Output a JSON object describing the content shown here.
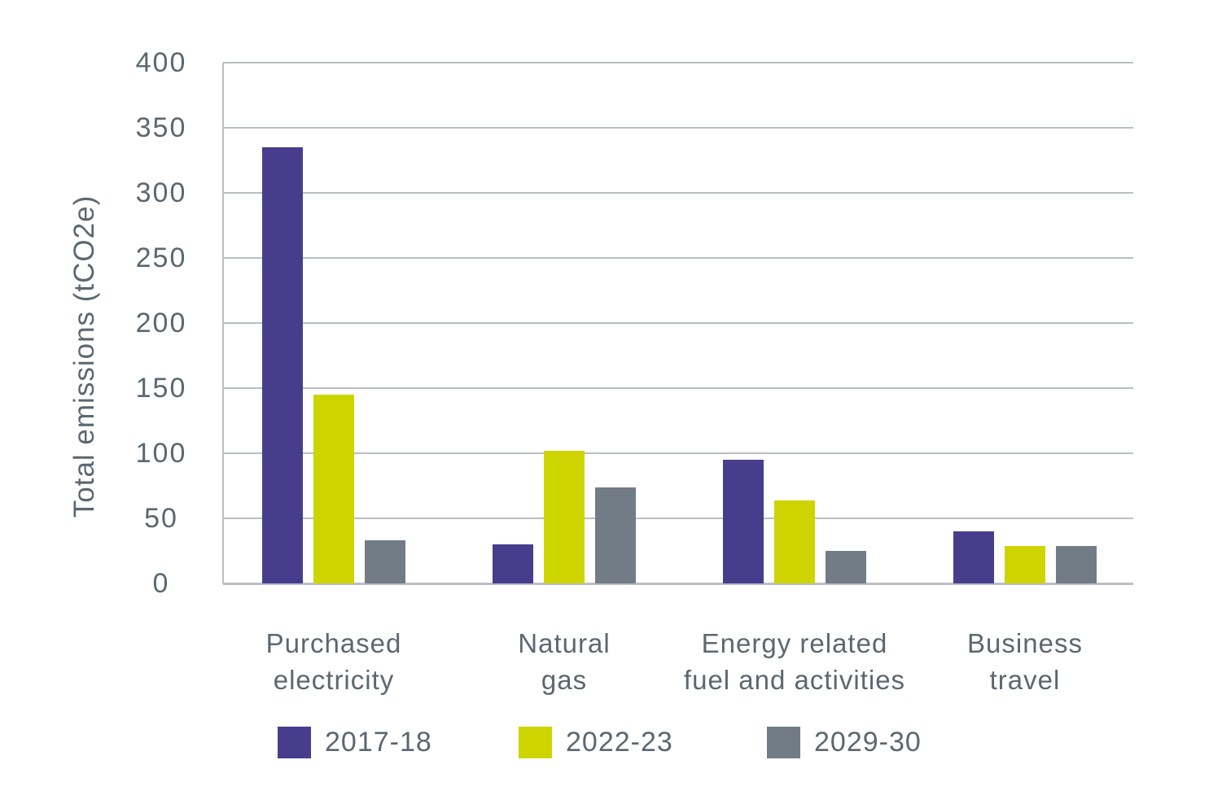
{
  "colors": {
    "series_2017_18": "#483d8d",
    "series_2022_23": "#cdd400",
    "series_2029_30": "#727c87",
    "grid": "#b9bfc4",
    "axis_text": "#5b6771",
    "background": "#ffffff"
  },
  "chart_data": {
    "type": "bar",
    "title": "",
    "xlabel": "",
    "ylabel": "Total emissions (tCO2e)",
    "ylim": [
      0,
      400
    ],
    "ytick_step": 50,
    "yticks": [
      0,
      50,
      100,
      150,
      200,
      250,
      300,
      350,
      400
    ],
    "grid": true,
    "legend_position": "bottom",
    "categories": [
      "Purchased electricity",
      "Natural gas",
      "Energy related fuel and activities",
      "Business travel"
    ],
    "category_lines": [
      [
        "Purchased",
        "electricity"
      ],
      [
        "Natural",
        "gas"
      ],
      [
        "Energy related",
        "fuel and activities"
      ],
      [
        "Business",
        "travel"
      ]
    ],
    "series": [
      {
        "name": "2017-18",
        "color": "#483d8d",
        "values": [
          335,
          30,
          95,
          40
        ]
      },
      {
        "name": "2022-23",
        "color": "#cdd400",
        "values": [
          145,
          102,
          64,
          29
        ]
      },
      {
        "name": "2029-30",
        "color": "#727c87",
        "values": [
          33,
          74,
          25,
          29
        ]
      }
    ]
  }
}
